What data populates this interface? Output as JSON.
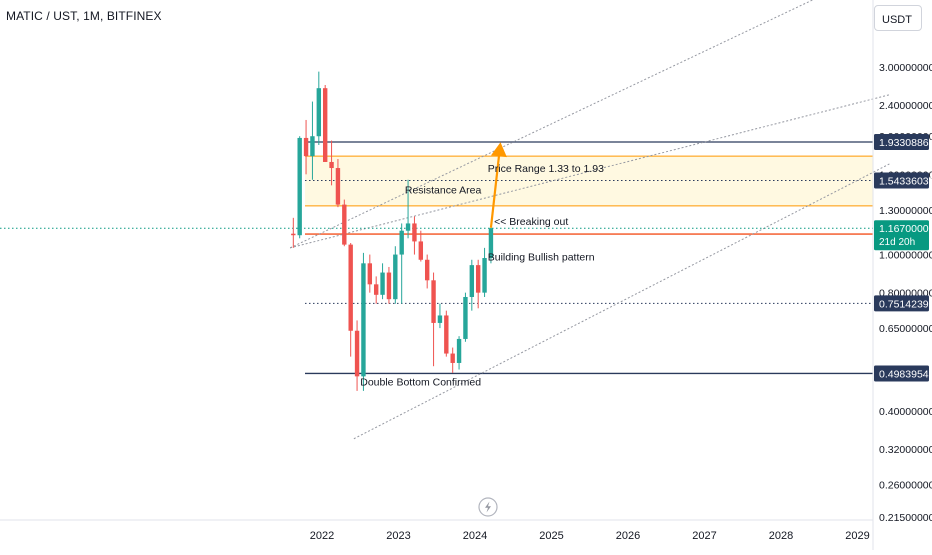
{
  "header": {
    "symbol_title": "MATIC / UST, 1M, BITFINEX"
  },
  "currency_button": {
    "label": "USDT"
  },
  "colors": {
    "up": "#26a69a",
    "down": "#ef5350",
    "channel": "#9598a1",
    "resistance_zone": "#fff9e1",
    "orange": "#ff9800",
    "navy": "#2a3a5c",
    "current_price": "#089981",
    "previous_close": "#f4511e",
    "dark_label": "#131722"
  },
  "chart_data": {
    "type": "candlestick",
    "title": "MATIC / UST, 1M, BITFINEX",
    "y_scale": "log",
    "ylim": [
      0.21,
      4.0
    ],
    "x_range": [
      "2021-08",
      "2029-06"
    ],
    "x_ticks": [
      "2022",
      "2023",
      "2024",
      "2025",
      "2026",
      "2027",
      "2028",
      "2029"
    ],
    "y_ticks": [
      "3.00000000",
      "2.40000000",
      "2.00000000",
      "1.60000000",
      "1.30000000",
      "1.00000000",
      "0.80000000",
      "0.65000000",
      "0.40000000",
      "0.32000000",
      "0.26000000",
      "0.21500000"
    ],
    "y_tick_values": [
      3.0,
      2.4,
      2.0,
      1.6,
      1.3,
      1.0,
      0.8,
      0.65,
      0.4,
      0.32,
      0.26,
      0.215
    ],
    "candles": [
      {
        "t": "2021-08",
        "o": 1.13,
        "h": 1.24,
        "l": 1.04,
        "c": 1.12
      },
      {
        "t": "2021-09",
        "o": 1.12,
        "h": 2.0,
        "l": 1.1,
        "c": 1.98
      },
      {
        "t": "2021-10",
        "o": 1.98,
        "h": 2.2,
        "l": 1.6,
        "c": 1.78
      },
      {
        "t": "2021-11",
        "o": 1.78,
        "h": 2.45,
        "l": 1.55,
        "c": 2.0
      },
      {
        "t": "2021-12",
        "o": 2.0,
        "h": 2.92,
        "l": 1.9,
        "c": 2.65
      },
      {
        "t": "2022-01",
        "o": 2.65,
        "h": 2.7,
        "l": 1.72,
        "c": 1.72
      },
      {
        "t": "2022-02",
        "o": 1.72,
        "h": 1.95,
        "l": 1.5,
        "c": 1.66
      },
      {
        "t": "2022-03",
        "o": 1.66,
        "h": 1.75,
        "l": 1.32,
        "c": 1.34
      },
      {
        "t": "2022-04",
        "o": 1.34,
        "h": 1.38,
        "l": 1.05,
        "c": 1.06
      },
      {
        "t": "2022-05",
        "o": 1.06,
        "h": 1.07,
        "l": 0.55,
        "c": 0.64
      },
      {
        "t": "2022-06",
        "o": 0.64,
        "h": 0.68,
        "l": 0.45,
        "c": 0.49
      },
      {
        "t": "2022-07",
        "o": 0.49,
        "h": 1.01,
        "l": 0.45,
        "c": 0.95
      },
      {
        "t": "2022-08",
        "o": 0.95,
        "h": 1.0,
        "l": 0.8,
        "c": 0.84
      },
      {
        "t": "2022-09",
        "o": 0.84,
        "h": 0.88,
        "l": 0.75,
        "c": 0.79
      },
      {
        "t": "2022-10",
        "o": 0.79,
        "h": 0.95,
        "l": 0.77,
        "c": 0.9
      },
      {
        "t": "2022-11",
        "o": 0.9,
        "h": 0.93,
        "l": 0.75,
        "c": 0.77
      },
      {
        "t": "2022-12",
        "o": 0.77,
        "h": 1.05,
        "l": 0.75,
        "c": 1.0
      },
      {
        "t": "2023-01",
        "o": 1.0,
        "h": 1.2,
        "l": 0.75,
        "c": 1.15
      },
      {
        "t": "2023-02",
        "o": 1.15,
        "h": 1.55,
        "l": 1.1,
        "c": 1.2
      },
      {
        "t": "2023-03",
        "o": 1.2,
        "h": 1.25,
        "l": 1.0,
        "c": 1.08
      },
      {
        "t": "2023-04",
        "o": 1.08,
        "h": 1.15,
        "l": 0.96,
        "c": 0.97
      },
      {
        "t": "2023-05",
        "o": 0.97,
        "h": 1.0,
        "l": 0.82,
        "c": 0.86
      },
      {
        "t": "2023-06",
        "o": 0.86,
        "h": 0.9,
        "l": 0.52,
        "c": 0.67
      },
      {
        "t": "2023-07",
        "o": 0.67,
        "h": 0.75,
        "l": 0.65,
        "c": 0.7
      },
      {
        "t": "2023-08",
        "o": 0.7,
        "h": 0.72,
        "l": 0.55,
        "c": 0.56
      },
      {
        "t": "2023-09",
        "o": 0.56,
        "h": 0.58,
        "l": 0.5,
        "c": 0.53
      },
      {
        "t": "2023-10",
        "o": 0.53,
        "h": 0.62,
        "l": 0.51,
        "c": 0.61
      },
      {
        "t": "2023-11",
        "o": 0.61,
        "h": 0.8,
        "l": 0.6,
        "c": 0.78
      },
      {
        "t": "2023-12",
        "o": 0.78,
        "h": 0.97,
        "l": 0.72,
        "c": 0.94
      },
      {
        "t": "2024-01",
        "o": 0.94,
        "h": 0.97,
        "l": 0.73,
        "c": 0.8
      },
      {
        "t": "2024-02",
        "o": 0.8,
        "h": 1.04,
        "l": 0.78,
        "c": 0.98
      },
      {
        "t": "2024-03",
        "o": 0.98,
        "h": 1.17,
        "l": 0.95,
        "c": 1.167
      }
    ],
    "horizontal_levels": [
      {
        "label": "1.93308864",
        "value": 1.93308864,
        "color": "#2a3a5c",
        "style": "solid"
      },
      {
        "label": "1.54336035",
        "value": 1.54336035,
        "color": "#2a3a5c",
        "style": "dotted"
      },
      {
        "label": "1.12769197",
        "value": 1.12769197,
        "color": "#f4511e",
        "style": "solid"
      },
      {
        "label": "0.75142392",
        "value": 0.75142392,
        "color": "#2a3a5c",
        "style": "dotted"
      },
      {
        "label": "0.49839540",
        "value": 0.4983954,
        "color": "#2a3a5c",
        "style": "solid"
      }
    ],
    "resistance_zone": {
      "top": 1.78,
      "bottom": 1.33
    },
    "current_price": {
      "label": "1.16700000",
      "value": 1.167,
      "countdown": "21d 20h"
    },
    "channel_lines": [
      {
        "start": {
          "t": "2021-08",
          "v": 1.04
        },
        "end": {
          "t": "2029-06",
          "v": 5.5
        }
      },
      {
        "start": {
          "t": "2021-08",
          "v": 1.04
        },
        "end": {
          "t": "2029-06",
          "v": 2.55
        }
      },
      {
        "start": {
          "t": "2022-06",
          "v": 0.34
        },
        "end": {
          "t": "2029-06",
          "v": 1.7
        }
      }
    ],
    "arrow": {
      "from": {
        "t": "2024-03",
        "v": 1.17
      },
      "to": {
        "t": "2024-05",
        "v": 1.93
      }
    },
    "annotations": [
      {
        "text": "Price Range 1.33 to 1.93",
        "t": "2024-03",
        "v": 1.62
      },
      {
        "text": "Resistance Area",
        "t": "2023-02",
        "v": 1.43
      },
      {
        "text": "<< Breaking out",
        "t": "2024-04",
        "v": 1.19
      },
      {
        "text": "Building Bullish pattern",
        "t": "2024-03",
        "v": 0.965
      },
      {
        "text": "Double Bottom Confirmed",
        "t": "2022-07",
        "v": 0.465
      }
    ]
  }
}
